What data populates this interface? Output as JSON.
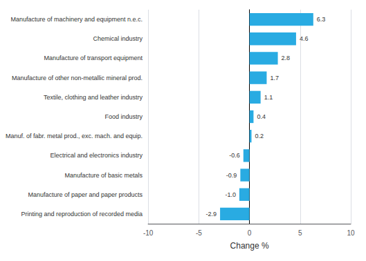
{
  "chart_data": {
    "type": "bar",
    "orientation": "horizontal",
    "categories": [
      "Printing and reproduction of recorded media",
      "Manufacture of paper and paper products",
      "Manufacture of basic metals",
      "Electrical and electronics industry",
      "Manuf. of fabr. metal prod., exc. mach. and equip.",
      "Food industry",
      "Textile, clothing and leather industry",
      "Manufacture of other non-metallic mineral prod.",
      "Manufacture of transport equipment",
      "Chemical industry",
      "Manufacture of machinery and equipment n.e.c."
    ],
    "values": [
      -2.9,
      -1.0,
      -0.9,
      -0.6,
      0.2,
      0.4,
      1.1,
      1.7,
      2.8,
      4.6,
      6.3
    ],
    "value_labels": [
      "-2.9",
      "-1.0",
      "-0.9",
      "-0.6",
      "0.2",
      "0.4",
      "1.1",
      "1.7",
      "2.8",
      "4.6",
      "6.3"
    ],
    "color": "#29abe2",
    "xlabel": "Change %",
    "xlim": [
      -10,
      10
    ],
    "xticks": [
      -10,
      -5,
      0,
      5,
      10
    ],
    "grid": true,
    "data_labels": true
  }
}
